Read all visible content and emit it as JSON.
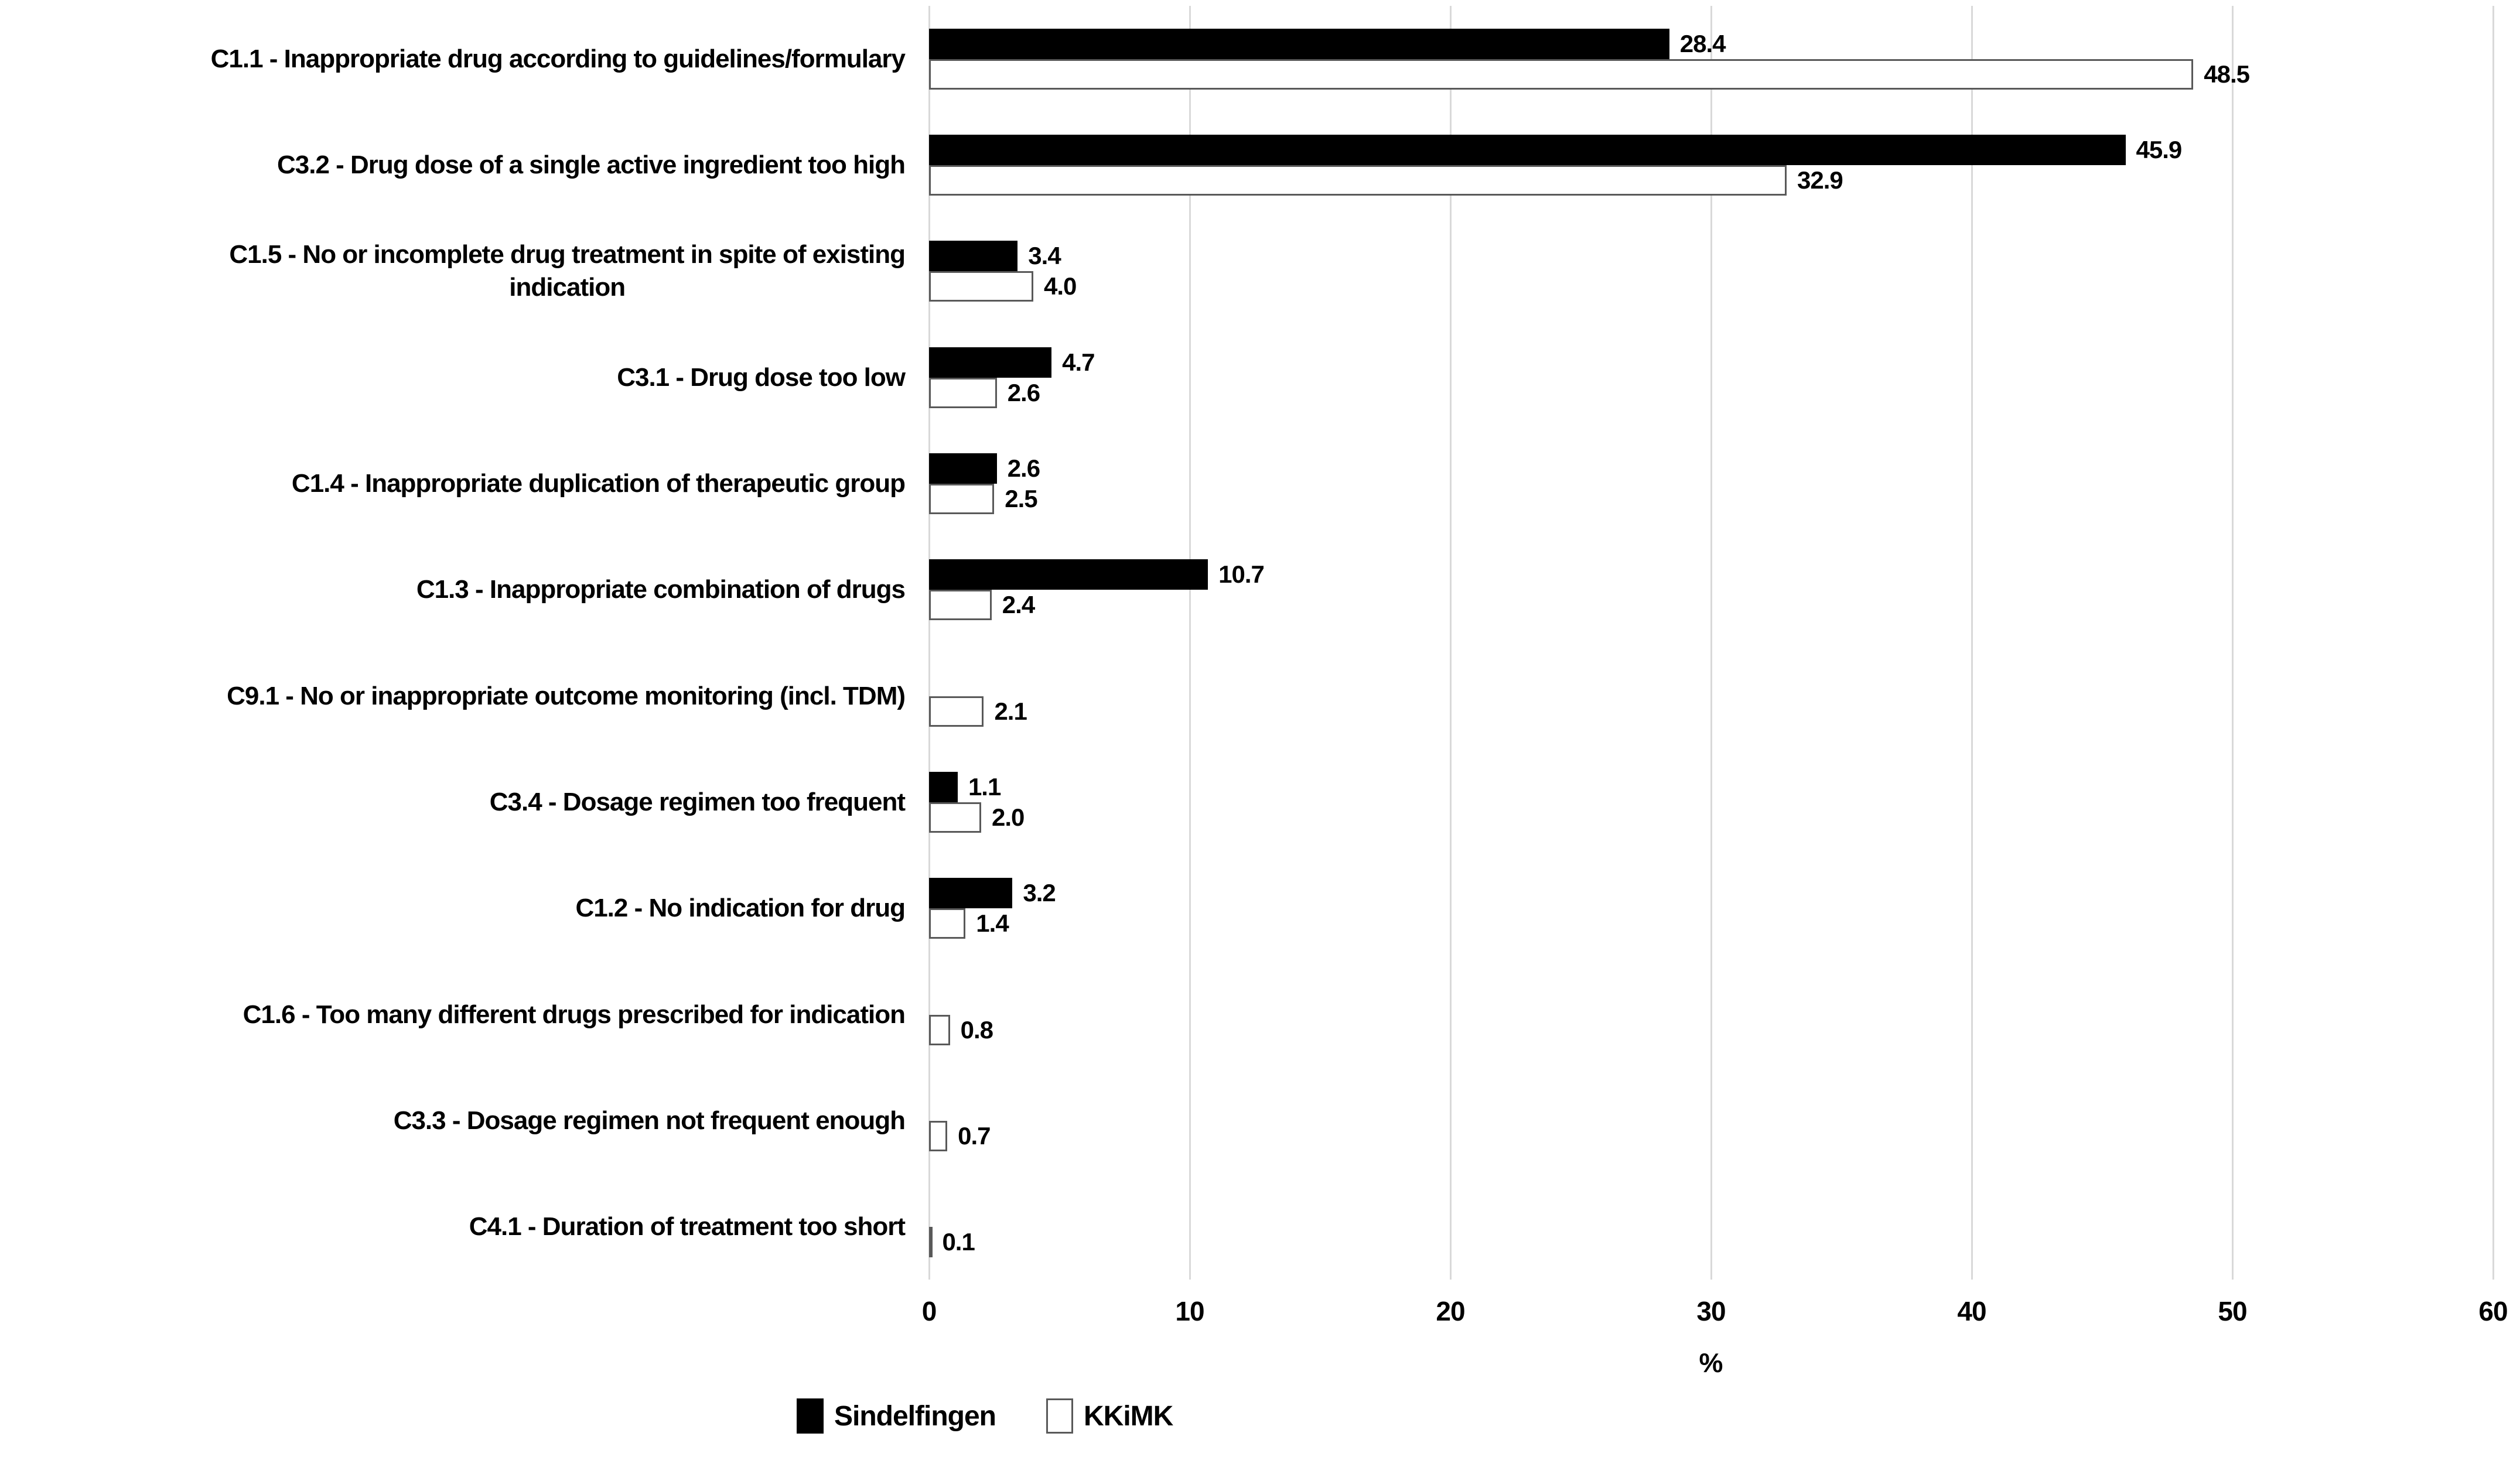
{
  "chart_data": {
    "type": "bar",
    "orientation": "horizontal",
    "title": "",
    "xlabel": "%",
    "xlim": [
      0,
      60
    ],
    "xticks": [
      0,
      10,
      20,
      30,
      40,
      50,
      60
    ],
    "grid": true,
    "legend_position": "bottom",
    "categories": [
      "C1.1  - Inappropriate drug according to guidelines/formulary",
      "C3.2  - Drug dose of a single active ingredient too high",
      "C1.5  - No or incomplete drug treatment in spite of existing\nindication",
      "C3.1  - Drug dose too low",
      "C1.4  - Inappropriate duplication of therapeutic group",
      "C1.3  - Inappropriate combination of drugs",
      "C9.1  - No or inappropriate outcome monitoring (incl. TDM)",
      "C3.4  - Dosage regimen too frequent",
      "C1.2  - No indication for drug",
      "C1.6  - Too many different drugs prescribed for indication",
      "C3.3  - Dosage regimen not frequent enough",
      "C4.1  - Duration of treatment too short"
    ],
    "series": [
      {
        "name": "Sindelfingen",
        "fill": "#000000",
        "border": "none",
        "values": [
          28.4,
          45.9,
          3.4,
          4.7,
          2.6,
          10.7,
          null,
          1.1,
          3.2,
          null,
          null,
          null
        ]
      },
      {
        "name": "KKiMK",
        "fill": "#FFFFFF",
        "border": "#595959",
        "values": [
          48.5,
          32.9,
          4.0,
          2.6,
          2.5,
          2.4,
          2.1,
          2.0,
          1.4,
          0.8,
          0.7,
          0.1
        ]
      }
    ]
  },
  "colors": {
    "bar_black": "#000000",
    "bar_white_border": "#595959",
    "gridline": "#D9D9D9",
    "text": "#000000",
    "background": "#FFFFFF"
  }
}
